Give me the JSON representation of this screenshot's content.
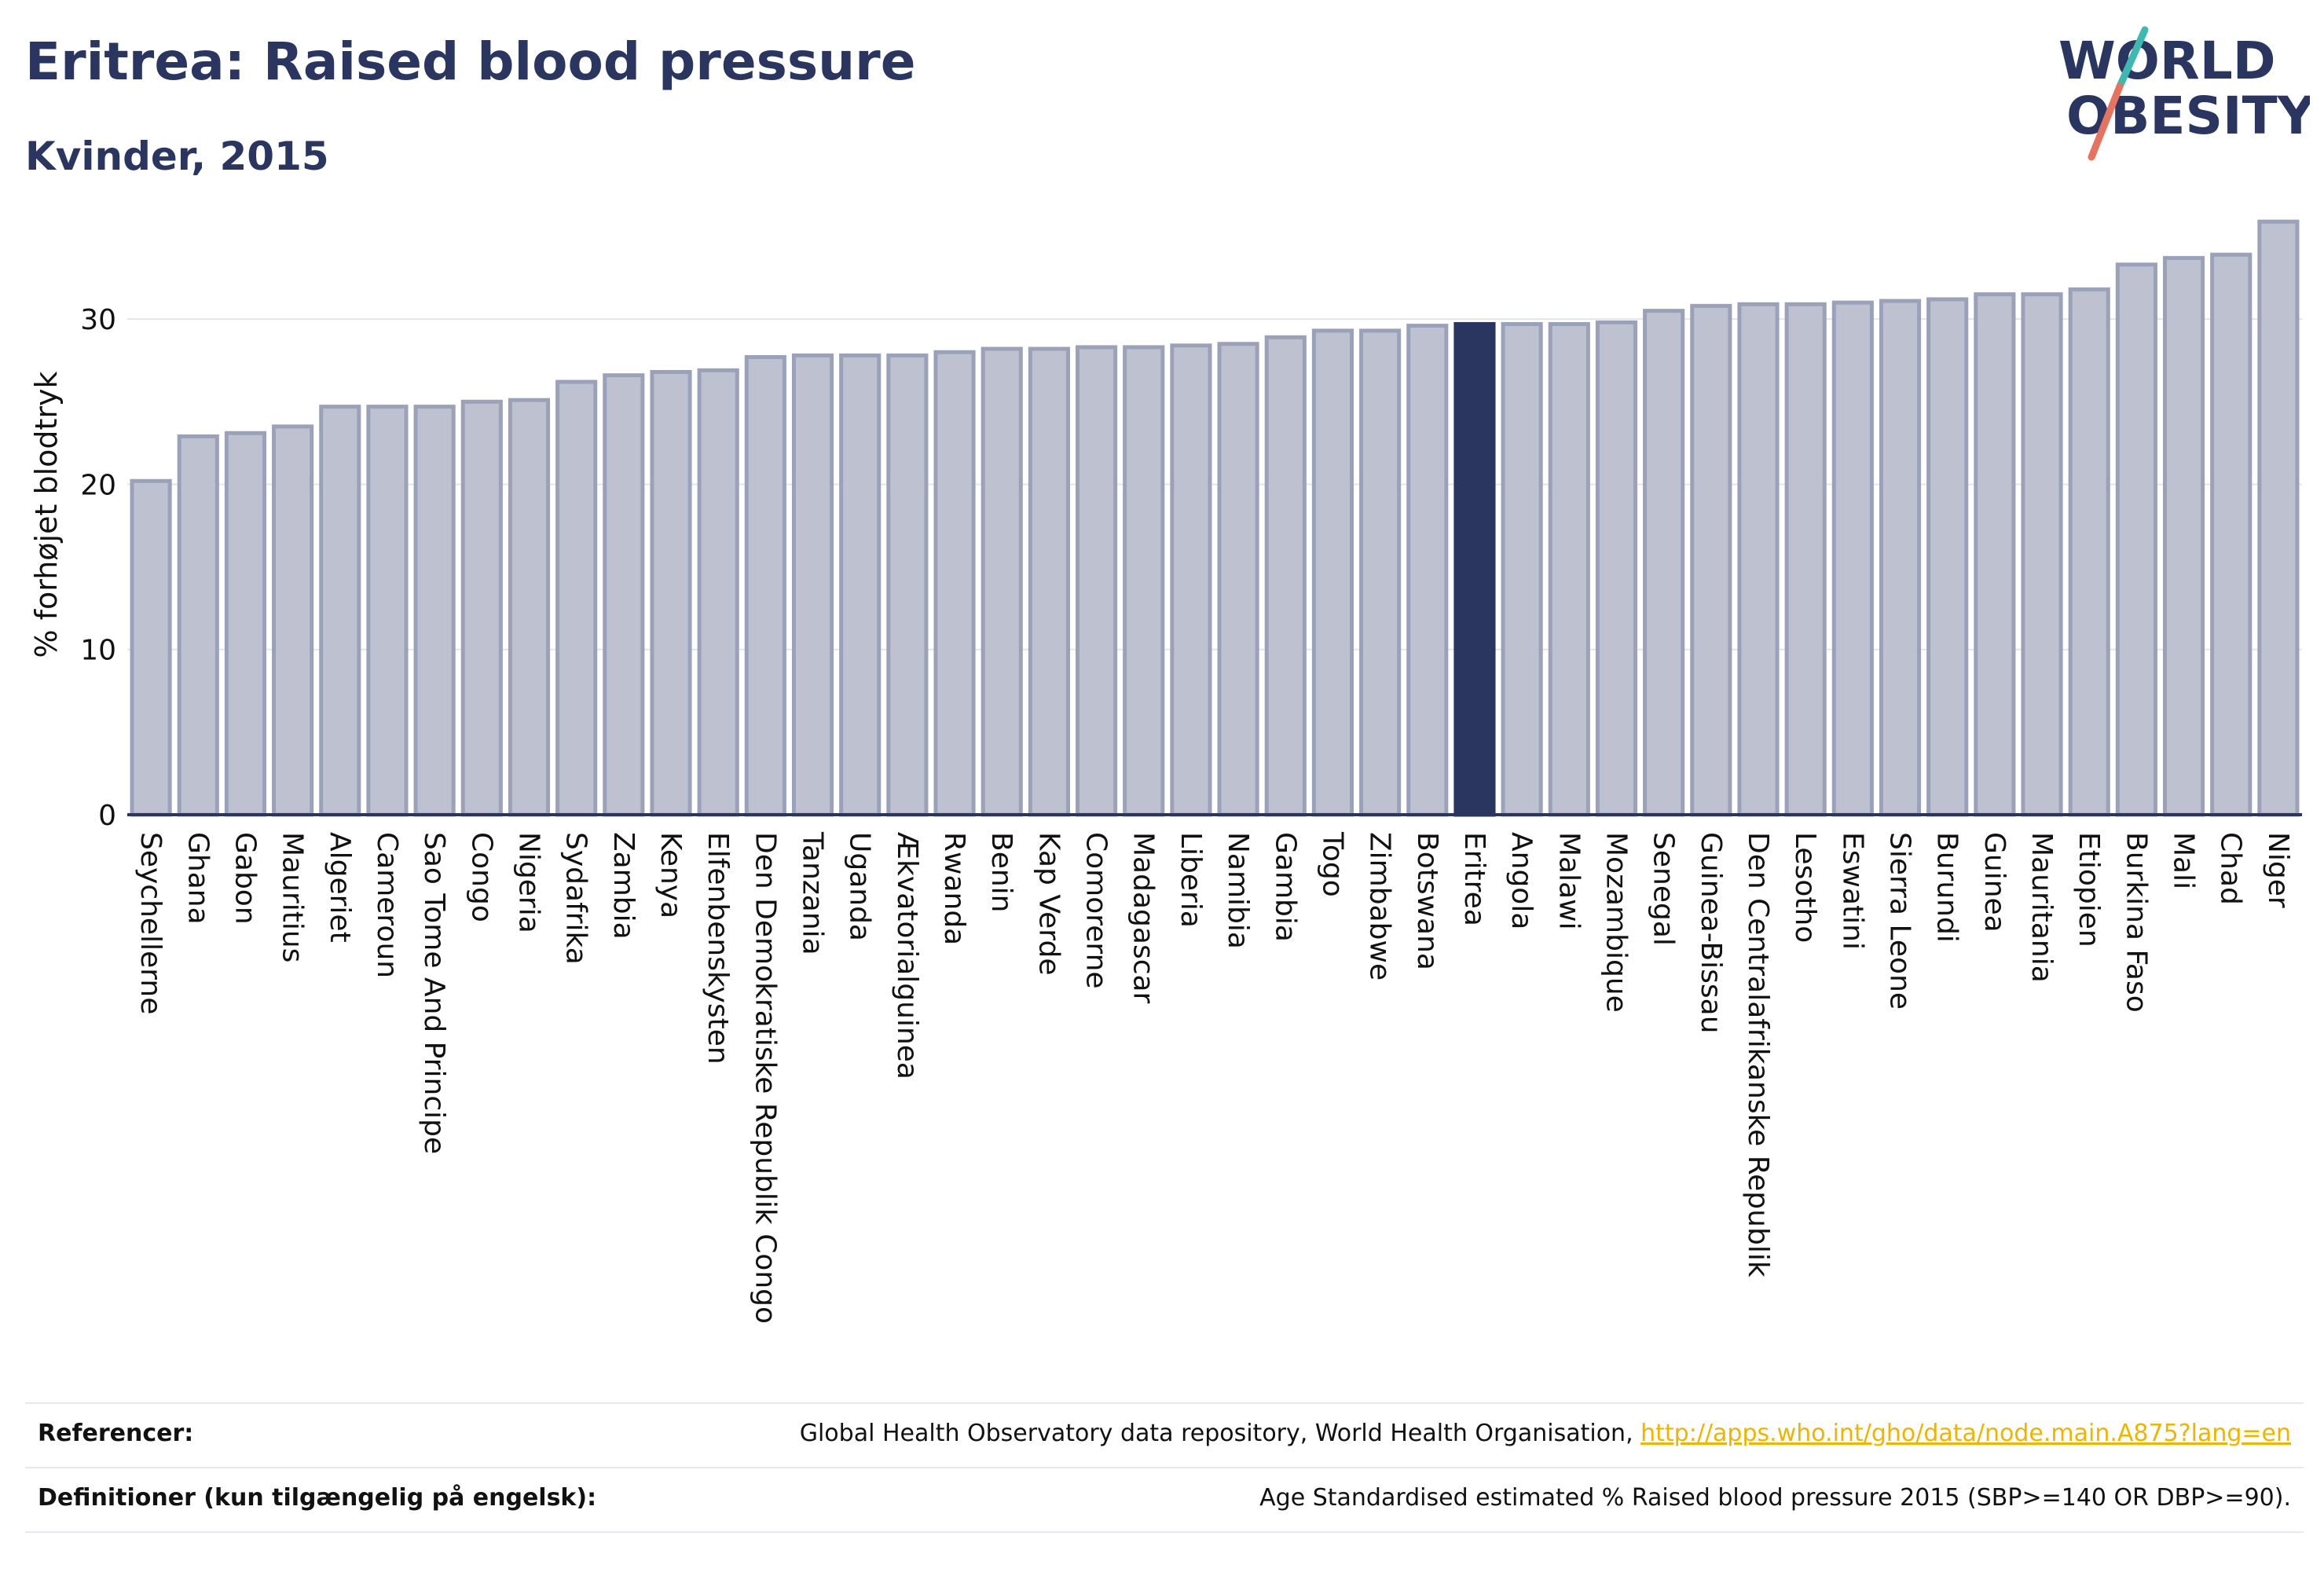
{
  "header": {
    "title": "Eritrea: Raised blood pressure",
    "subtitle": "Kvinder, 2015"
  },
  "logo": {
    "line1": "WORLD",
    "line2": "OBESITY"
  },
  "colors": {
    "bar": "#bec2d0",
    "bar_stroke": "#9aa1b8",
    "highlight": "#2a3560",
    "axis": "#2a3560"
  },
  "chart_data": {
    "type": "bar",
    "ylabel": "% forhøjet blodtryk",
    "ylim": [
      0,
      36
    ],
    "yticks": [
      0,
      10,
      20,
      30
    ],
    "grid": true,
    "highlight": "Eritrea",
    "categories": [
      "Seychellerne",
      "Ghana",
      "Gabon",
      "Mauritius",
      "Algeriet",
      "Cameroun",
      "Sao Tome And Principe",
      "Congo",
      "Nigeria",
      "Sydafrika",
      "Zambia",
      "Kenya",
      "Elfenbenskysten",
      "Den Demokratiske Republik Congo",
      "Tanzania",
      "Uganda",
      "Ækvatorialguinea",
      "Rwanda",
      "Benin",
      "Kap Verde",
      "Comorerne",
      "Madagascar",
      "Liberia",
      "Namibia",
      "Gambia",
      "Togo",
      "Zimbabwe",
      "Botswana",
      "Eritrea",
      "Angola",
      "Malawi",
      "Mozambique",
      "Senegal",
      "Guinea-Bissau",
      "Den Centralafrikanske Republik",
      "Lesotho",
      "Eswatini",
      "Sierra Leone",
      "Burundi",
      "Guinea",
      "Mauritania",
      "Etiopien",
      "Burkina Faso",
      "Mali",
      "Chad",
      "Niger"
    ],
    "values": [
      20.2,
      22.9,
      23.1,
      23.5,
      24.7,
      24.7,
      24.7,
      25.0,
      25.1,
      26.2,
      26.6,
      26.8,
      26.9,
      27.7,
      27.8,
      27.8,
      27.8,
      28.0,
      28.2,
      28.2,
      28.3,
      28.3,
      28.4,
      28.5,
      28.9,
      29.3,
      29.3,
      29.6,
      29.7,
      29.7,
      29.7,
      29.8,
      30.5,
      30.8,
      30.9,
      30.9,
      31.0,
      31.1,
      31.2,
      31.5,
      31.5,
      31.8,
      33.3,
      33.7,
      33.9,
      35.9
    ]
  },
  "footer": {
    "references_label": "Referencer:",
    "references_text": "Global Health Observatory data repository, World Health Organisation, ",
    "references_link": "http://apps.who.int/gho/data/node.main.A875?lang=en",
    "definitions_label": "Definitioner (kun tilgængelig på engelsk):",
    "definitions_text": "Age Standardised estimated % Raised blood pressure 2015 (SBP>=140 OR DBP>=90)."
  }
}
